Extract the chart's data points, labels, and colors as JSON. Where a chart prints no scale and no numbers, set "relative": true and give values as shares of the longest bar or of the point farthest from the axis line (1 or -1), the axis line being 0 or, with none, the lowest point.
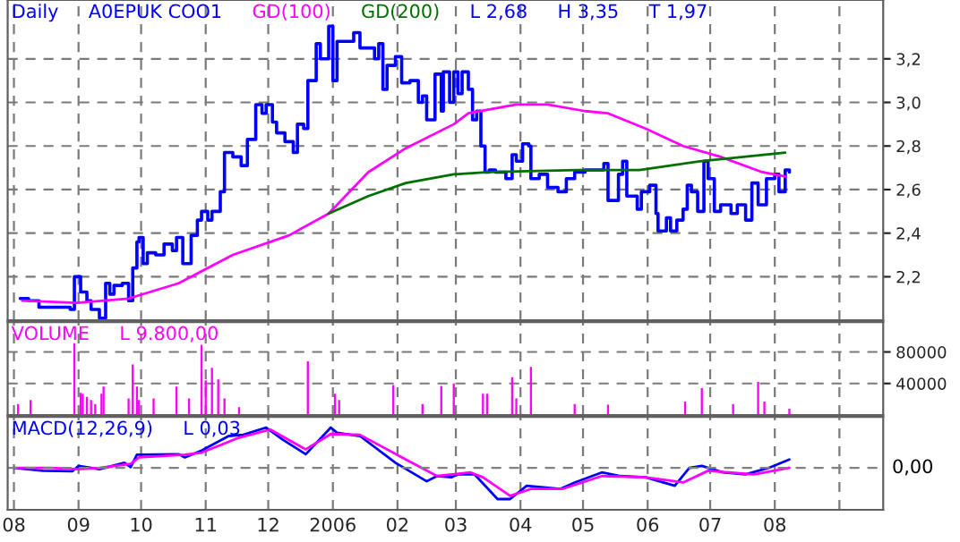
{
  "chart_data": [
    {
      "type": "step",
      "title": "Daily",
      "annotations": [
        "L 2,68",
        "H 3,35",
        "T 1,97"
      ],
      "legend": "top left",
      "grid": true,
      "tick_labels": "y",
      "xlim": [
        "2005-07-29",
        "2006-09-22"
      ],
      "xticks": [
        "2005-08-01",
        "2005-09-01",
        "2005-10-01",
        "2005-11-01",
        "2005-12-01",
        "2006-01-01",
        "2006-02-01",
        "2006-03-01",
        "2006-04-01",
        "2006-05-01",
        "2006-06-01",
        "2006-07-01",
        "2006-08-01",
        "2006-09-01"
      ],
      "ylim": [
        2.0,
        3.47
      ],
      "yticks": [
        {
          "value": 2.2,
          "label": "2,2"
        },
        {
          "value": 2.4,
          "label": "2,4"
        },
        {
          "value": 2.6,
          "label": "2,6"
        },
        {
          "value": 2.8,
          "label": "2,8"
        },
        {
          "value": 3.0,
          "label": "3,0"
        },
        {
          "value": 3.2,
          "label": "3,2"
        }
      ],
      "x": [
        "2005-08-04",
        "2005-08-08",
        "2005-08-13",
        "2005-08-18",
        "2005-08-28",
        "2005-08-30",
        "2005-09-02",
        "2005-09-05",
        "2005-09-07",
        "2005-09-11",
        "2005-09-14",
        "2005-09-16",
        "2005-09-18",
        "2005-09-22",
        "2005-09-25",
        "2005-09-27",
        "2005-09-29",
        "2005-09-30",
        "2005-10-02",
        "2005-10-04",
        "2005-10-08",
        "2005-10-12",
        "2005-10-16",
        "2005-10-18",
        "2005-10-21",
        "2005-10-25",
        "2005-10-28",
        "2005-10-30",
        "2005-11-02",
        "2005-11-04",
        "2005-11-08",
        "2005-11-10",
        "2005-11-14",
        "2005-11-18",
        "2005-11-21",
        "2005-11-25",
        "2005-11-28",
        "2005-11-30",
        "2005-12-03",
        "2005-12-05",
        "2005-12-09",
        "2005-12-13",
        "2005-12-15",
        "2005-12-18",
        "2005-12-20",
        "2005-12-24",
        "2005-12-26",
        "2005-12-30",
        "2006-01-01",
        "2006-01-03",
        "2006-01-07",
        "2006-01-11",
        "2006-01-14",
        "2006-01-18",
        "2006-01-21",
        "2006-01-23",
        "2006-01-25",
        "2006-01-27",
        "2006-01-31",
        "2006-02-03",
        "2006-02-07",
        "2006-02-11",
        "2006-02-13",
        "2006-02-15",
        "2006-02-19",
        "2006-02-22",
        "2006-02-23",
        "2006-02-26",
        "2006-02-28",
        "2006-03-02",
        "2006-03-04",
        "2006-03-07",
        "2006-03-09",
        "2006-03-11",
        "2006-03-13",
        "2006-03-15",
        "2006-03-17",
        "2006-03-20",
        "2006-03-25",
        "2006-03-28",
        "2006-03-30",
        "2006-04-02",
        "2006-04-05",
        "2006-04-06",
        "2006-04-10",
        "2006-04-14",
        "2006-04-19",
        "2006-04-23",
        "2006-04-27",
        "2006-05-02",
        "2006-05-11",
        "2006-05-13",
        "2006-05-18",
        "2006-05-20",
        "2006-05-22",
        "2006-05-27",
        "2006-05-29",
        "2006-06-02",
        "2006-06-05",
        "2006-06-06",
        "2006-06-10",
        "2006-06-12",
        "2006-06-15",
        "2006-06-18",
        "2006-06-20",
        "2006-06-22",
        "2006-06-25",
        "2006-06-28",
        "2006-06-30",
        "2006-07-03",
        "2006-07-06",
        "2006-07-11",
        "2006-07-14",
        "2006-07-18",
        "2006-07-21",
        "2006-07-24",
        "2006-07-28",
        "2006-08-01",
        "2006-08-03",
        "2006-08-06",
        "2006-08-08"
      ],
      "series": [
        {
          "name": "A0EPUK COO1",
          "color": "#0000ff",
          "values": [
            2.1,
            2.09,
            2.06,
            2.06,
            2.05,
            2.2,
            2.13,
            2.09,
            2.05,
            2.01,
            2.17,
            2.12,
            2.16,
            2.17,
            2.09,
            2.24,
            2.36,
            2.38,
            2.26,
            2.31,
            2.3,
            2.35,
            2.32,
            2.38,
            2.26,
            2.39,
            2.46,
            2.5,
            2.46,
            2.5,
            2.59,
            2.77,
            2.75,
            2.71,
            2.83,
            2.99,
            2.95,
            2.99,
            2.91,
            2.86,
            2.82,
            2.77,
            2.9,
            2.88,
            3.1,
            3.27,
            3.2,
            3.35,
            3.1,
            3.28,
            3.28,
            3.32,
            3.25,
            3.25,
            3.2,
            3.27,
            3.06,
            3.17,
            3.21,
            3.09,
            3.1,
            3.0,
            3.03,
            2.92,
            3.13,
            2.96,
            3.14,
            3.0,
            3.14,
            3.04,
            3.14,
            3.06,
            2.92,
            2.96,
            2.8,
            2.68,
            2.69,
            2.68,
            2.65,
            2.76,
            2.73,
            2.81,
            2.8,
            2.65,
            2.67,
            2.61,
            2.59,
            2.65,
            2.68,
            2.69,
            2.72,
            2.55,
            2.67,
            2.73,
            2.57,
            2.51,
            2.59,
            2.62,
            2.49,
            2.41,
            2.47,
            2.41,
            2.46,
            2.51,
            2.62,
            2.59,
            2.5,
            2.73,
            2.65,
            2.5,
            2.53,
            2.49,
            2.53,
            2.46,
            2.63,
            2.53,
            2.65,
            2.67,
            2.59,
            2.69,
            2.68
          ]
        },
        {
          "name": "GD(100)",
          "color": "#ff00ff",
          "type": "line",
          "x": [
            "2005-08-05",
            "2005-08-31",
            "2005-09-25",
            "2005-10-19",
            "2005-11-14",
            "2005-12-11",
            "2005-12-30",
            "2006-01-18",
            "2006-02-05",
            "2006-02-28",
            "2006-03-07",
            "2006-03-30",
            "2006-04-14",
            "2006-05-02",
            "2006-05-13",
            "2006-05-31",
            "2006-06-18",
            "2006-07-06",
            "2006-07-26",
            "2006-08-06"
          ],
          "values": [
            2.09,
            2.08,
            2.1,
            2.17,
            2.3,
            2.39,
            2.49,
            2.68,
            2.79,
            2.9,
            2.95,
            2.99,
            2.99,
            2.96,
            2.95,
            2.88,
            2.8,
            2.75,
            2.68,
            2.66
          ]
        },
        {
          "name": "GD(200)",
          "color": "#007000",
          "type": "line",
          "x": [
            "2005-12-30",
            "2006-01-18",
            "2006-02-05",
            "2006-02-28",
            "2006-03-17",
            "2006-04-28",
            "2006-05-28",
            "2006-06-26",
            "2006-08-06"
          ],
          "values": [
            2.49,
            2.57,
            2.63,
            2.67,
            2.68,
            2.69,
            2.69,
            2.73,
            2.77
          ]
        }
      ]
    },
    {
      "type": "bar",
      "annotations": [
        "L 9.800,00"
      ],
      "legend": "top left",
      "grid": true,
      "tick_labels": "y",
      "xlim": [
        "2005-07-29",
        "2006-09-22"
      ],
      "xticks": [
        "2005-08-01",
        "2005-09-01",
        "2005-10-01",
        "2005-11-01",
        "2005-12-01",
        "2006-01-01",
        "2006-02-01",
        "2006-03-01",
        "2006-04-01",
        "2006-05-01",
        "2006-06-01",
        "2006-07-01",
        "2006-08-01",
        "2006-09-01"
      ],
      "ylim": [
        0,
        118000
      ],
      "yticks": [
        40000,
        80000
      ],
      "x": [
        "2005-08-03",
        "2005-08-09",
        "2005-08-30",
        "2005-09-02",
        "2005-09-03",
        "2005-09-05",
        "2005-09-07",
        "2005-09-09",
        "2005-09-12",
        "2005-09-13",
        "2005-09-25",
        "2005-09-27",
        "2005-09-29",
        "2005-09-30",
        "2005-10-07",
        "2005-10-18",
        "2005-10-24",
        "2005-10-30",
        "2005-11-01",
        "2005-11-04",
        "2005-11-07",
        "2005-11-10",
        "2005-11-17",
        "2005-12-20",
        "2006-01-02",
        "2006-01-04",
        "2006-01-30",
        "2006-02-13",
        "2006-02-22",
        "2006-02-28",
        "2006-03-14",
        "2006-03-16",
        "2006-03-28",
        "2006-03-30",
        "2006-04-06",
        "2006-04-27",
        "2006-05-13",
        "2006-06-19",
        "2006-06-27",
        "2006-07-12",
        "2006-07-24",
        "2006-07-27",
        "2006-08-08"
      ],
      "series": [
        {
          "name": "VOLUME",
          "color": "#ff00ff",
          "values": [
            14000,
            19000,
            91000,
            28000,
            27000,
            23000,
            19000,
            14000,
            27000,
            36000,
            21000,
            64000,
            36000,
            19000,
            21000,
            36000,
            21000,
            89000,
            44000,
            60000,
            45000,
            21000,
            10000,
            68000,
            27000,
            19000,
            38000,
            14000,
            37000,
            40000,
            27000,
            27000,
            48000,
            21000,
            61000,
            14000,
            13000,
            17000,
            34000,
            14000,
            42000,
            17000,
            8000
          ]
        }
      ]
    },
    {
      "type": "line",
      "relative": true,
      "annotations": [
        "L 0,03"
      ],
      "legend": "top left",
      "grid": "x",
      "tick_labels": "x",
      "xlim": [
        "2005-07-29",
        "2006-09-22"
      ],
      "xticks": [
        {
          "value": "2005-08-01",
          "label": "08"
        },
        {
          "value": "2005-09-01",
          "label": "09"
        },
        {
          "value": "2005-10-01",
          "label": "10"
        },
        {
          "value": "2005-11-01",
          "label": "11"
        },
        {
          "value": "2005-12-01",
          "label": "12"
        },
        {
          "value": "2006-01-01",
          "label": "2006"
        },
        {
          "value": "2006-02-01",
          "label": "02"
        },
        {
          "value": "2006-03-01",
          "label": "03"
        },
        {
          "value": "2006-04-01",
          "label": "04"
        },
        {
          "value": "2006-05-01",
          "label": "05"
        },
        {
          "value": "2006-06-01",
          "label": "06"
        },
        {
          "value": "2006-07-01",
          "label": "07"
        },
        {
          "value": "2006-08-01",
          "label": "08"
        },
        {
          "value": "2006-09-01",
          "label": null
        }
      ],
      "ref_lines": [
        {
          "axis": "y",
          "value": 0,
          "label": "0,00",
          "color": "#808080",
          "line_style": "dashed"
        }
      ],
      "series": [
        {
          "name": "MACD(12,26,9)",
          "color": "#0000ff",
          "x": [
            "2005-08-01",
            "2005-08-15",
            "2005-08-29",
            "2005-09-01",
            "2005-09-11",
            "2005-09-23",
            "2005-09-26",
            "2005-09-29",
            "2005-10-19",
            "2005-10-22",
            "2005-10-30",
            "2005-11-12",
            "2005-11-19",
            "2005-11-30",
            "2005-12-08",
            "2005-12-19",
            "2005-12-31",
            "2006-01-03",
            "2006-01-14",
            "2006-01-31",
            "2006-02-15",
            "2006-02-20",
            "2006-02-27",
            "2006-03-02",
            "2006-03-10",
            "2006-03-21",
            "2006-03-27",
            "2006-04-04",
            "2006-04-20",
            "2006-04-27",
            "2006-05-10",
            "2006-05-19",
            "2006-05-31",
            "2006-06-14",
            "2006-06-21",
            "2006-06-27",
            "2006-07-07",
            "2006-07-18",
            "2006-07-29",
            "2006-08-08"
          ],
          "values": [
            0,
            -0.07,
            -0.08,
            0.05,
            -0.03,
            0.13,
            0.02,
            0.33,
            0.34,
            0.26,
            0.43,
            0.79,
            0.82,
            1.0,
            0.7,
            0.34,
            1.0,
            0.87,
            0.79,
            0.13,
            -0.33,
            -0.2,
            -0.23,
            -0.16,
            -0.16,
            -0.77,
            -0.77,
            -0.44,
            -0.52,
            -0.36,
            -0.11,
            -0.2,
            -0.23,
            -0.44,
            0,
            0.05,
            -0.11,
            -0.16,
            0,
            0.21
          ]
        },
        {
          "color": "#ff00ff",
          "x": [
            "2005-08-01",
            "2005-08-19",
            "2005-09-01",
            "2005-09-11",
            "2005-09-26",
            "2005-09-30",
            "2005-10-22",
            "2005-10-30",
            "2005-11-17",
            "2005-12-02",
            "2005-12-19",
            "2005-12-31",
            "2006-01-14",
            "2006-02-05",
            "2006-02-20",
            "2006-03-08",
            "2006-03-14",
            "2006-03-27",
            "2006-04-06",
            "2006-04-21",
            "2006-05-10",
            "2006-05-31",
            "2006-06-18",
            "2006-06-30",
            "2006-07-22",
            "2006-08-08"
          ],
          "values": [
            0,
            0,
            -0.03,
            0,
            0.1,
            0.26,
            0.33,
            0.38,
            0.75,
            0.95,
            0.46,
            0.84,
            0.82,
            0.21,
            -0.2,
            -0.11,
            -0.23,
            -0.69,
            -0.52,
            -0.52,
            -0.2,
            -0.23,
            -0.36,
            -0.07,
            -0.16,
            0
          ]
        }
      ]
    }
  ]
}
